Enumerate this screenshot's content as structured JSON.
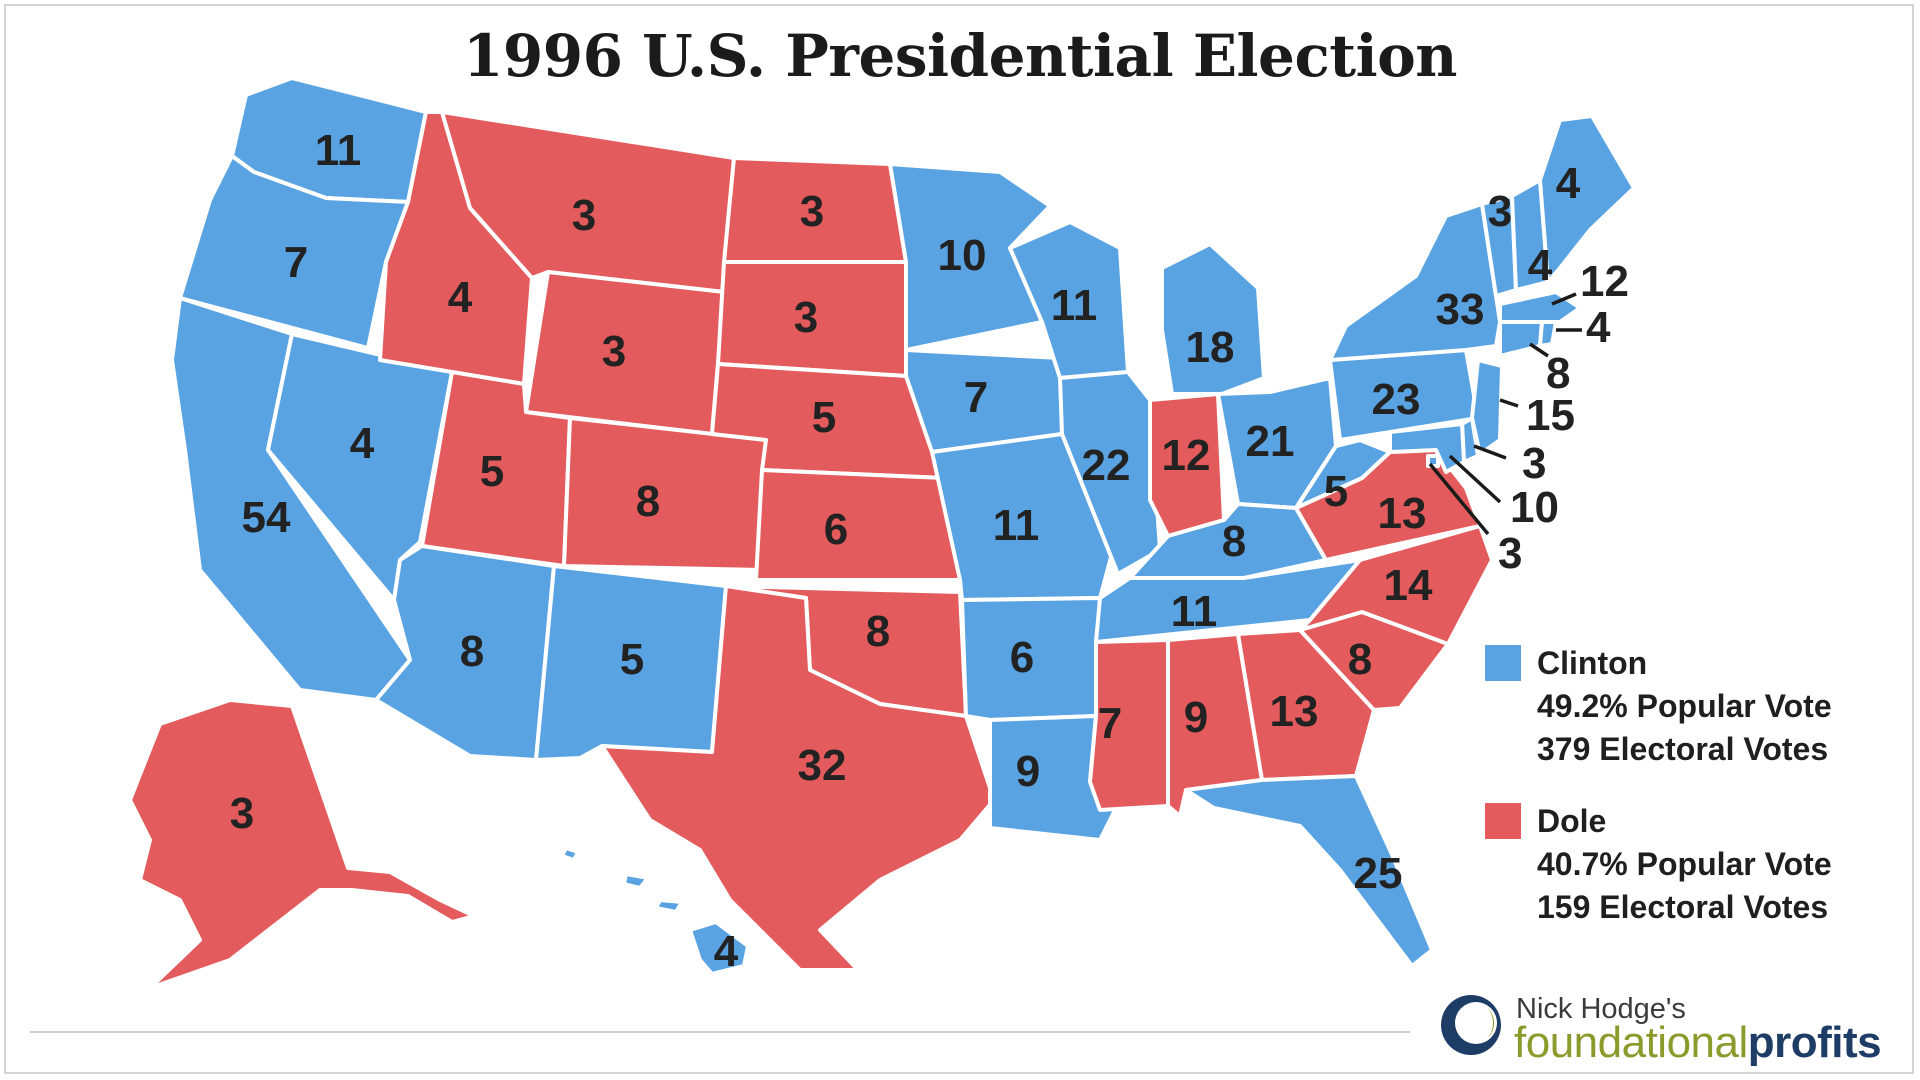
{
  "title": "1996 U.S. Presidential Election",
  "colors": {
    "clinton": "#5aa3e3",
    "dole": "#e35b5c",
    "text": "#222222"
  },
  "legend": {
    "clinton": {
      "name": "Clinton",
      "popular": "49.2% Popular Vote",
      "electoral": "379 Electoral Votes"
    },
    "dole": {
      "name": "Dole",
      "popular": "40.7% Popular Vote",
      "electoral": "159 Electoral Votes"
    }
  },
  "states": {
    "WA": {
      "winner": "clinton",
      "ev": "11"
    },
    "OR": {
      "winner": "clinton",
      "ev": "7"
    },
    "CA": {
      "winner": "clinton",
      "ev": "54"
    },
    "NV": {
      "winner": "clinton",
      "ev": "4"
    },
    "ID": {
      "winner": "dole",
      "ev": "4"
    },
    "MT": {
      "winner": "dole",
      "ev": "3"
    },
    "WY": {
      "winner": "dole",
      "ev": "3"
    },
    "UT": {
      "winner": "dole",
      "ev": "5"
    },
    "AZ": {
      "winner": "clinton",
      "ev": "8"
    },
    "CO": {
      "winner": "dole",
      "ev": "8"
    },
    "NM": {
      "winner": "clinton",
      "ev": "5"
    },
    "ND": {
      "winner": "dole",
      "ev": "3"
    },
    "SD": {
      "winner": "dole",
      "ev": "3"
    },
    "NE": {
      "winner": "dole",
      "ev": "5"
    },
    "KS": {
      "winner": "dole",
      "ev": "6"
    },
    "OK": {
      "winner": "dole",
      "ev": "8"
    },
    "TX": {
      "winner": "dole",
      "ev": "32"
    },
    "MN": {
      "winner": "clinton",
      "ev": "10"
    },
    "IA": {
      "winner": "clinton",
      "ev": "7"
    },
    "MO": {
      "winner": "clinton",
      "ev": "11"
    },
    "AR": {
      "winner": "clinton",
      "ev": "6"
    },
    "LA": {
      "winner": "clinton",
      "ev": "9"
    },
    "WI": {
      "winner": "clinton",
      "ev": "11"
    },
    "IL": {
      "winner": "clinton",
      "ev": "22"
    },
    "MI": {
      "winner": "clinton",
      "ev": "18"
    },
    "IN": {
      "winner": "dole",
      "ev": "12"
    },
    "OH": {
      "winner": "clinton",
      "ev": "21"
    },
    "KY": {
      "winner": "clinton",
      "ev": "8"
    },
    "TN": {
      "winner": "clinton",
      "ev": "11"
    },
    "MS": {
      "winner": "dole",
      "ev": "7"
    },
    "AL": {
      "winner": "dole",
      "ev": "9"
    },
    "GA": {
      "winner": "dole",
      "ev": "13"
    },
    "FL": {
      "winner": "clinton",
      "ev": "25"
    },
    "SC": {
      "winner": "dole",
      "ev": "8"
    },
    "NC": {
      "winner": "dole",
      "ev": "14"
    },
    "VA": {
      "winner": "dole",
      "ev": "13"
    },
    "WV": {
      "winner": "clinton",
      "ev": "5"
    },
    "PA": {
      "winner": "clinton",
      "ev": "23"
    },
    "NY": {
      "winner": "clinton",
      "ev": "33"
    },
    "VT": {
      "winner": "clinton",
      "ev": "3"
    },
    "NH": {
      "winner": "clinton",
      "ev": "4"
    },
    "ME": {
      "winner": "clinton",
      "ev": "4"
    },
    "MA": {
      "winner": "clinton",
      "ev": "12"
    },
    "RI": {
      "winner": "clinton",
      "ev": "4"
    },
    "CT": {
      "winner": "clinton",
      "ev": "8"
    },
    "NJ": {
      "winner": "clinton",
      "ev": "15"
    },
    "DE": {
      "winner": "clinton",
      "ev": "3"
    },
    "MD": {
      "winner": "clinton",
      "ev": "10"
    },
    "DC": {
      "winner": "clinton",
      "ev": "3"
    },
    "AK": {
      "winner": "dole",
      "ev": "3"
    },
    "HI": {
      "winner": "clinton",
      "ev": "4"
    }
  },
  "brand": {
    "top": "Nick Hodge's",
    "word1": "foundational",
    "word2": "profits"
  }
}
